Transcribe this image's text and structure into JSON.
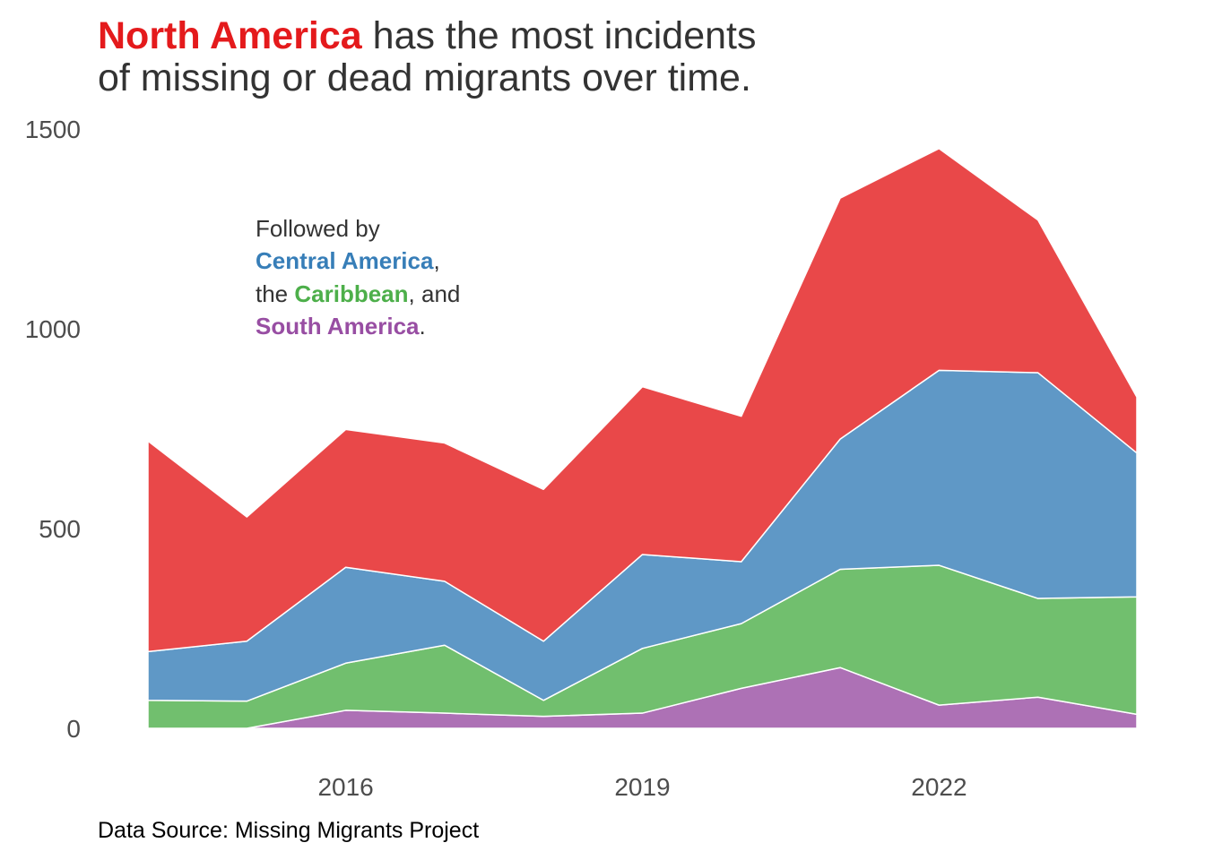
{
  "chart_data": {
    "type": "area",
    "stacked": true,
    "title": {
      "highlight": "North America",
      "line1_rest": " has the most incidents",
      "line2": "of missing or dead migrants over time."
    },
    "annotation": {
      "line1": "Followed by",
      "central": "Central America",
      "comma": ",",
      "the": "the ",
      "caribbean": "Caribbean",
      "and": ", and",
      "south": "South America",
      "period": "."
    },
    "caption": "Data Source: Missing Migrants Project",
    "xlabel": "",
    "ylabel": "",
    "x": [
      2014,
      2015,
      2016,
      2017,
      2018,
      2019,
      2020,
      2021,
      2022,
      2023,
      2024
    ],
    "xlim": [
      2014,
      2024
    ],
    "ylim": [
      0,
      1500
    ],
    "x_ticks": [
      2016,
      2019,
      2022
    ],
    "x_tick_labels": [
      "2016",
      "2019",
      "2022"
    ],
    "y_ticks": [
      0,
      500,
      1000,
      1500
    ],
    "y_tick_labels": [
      "0",
      "500",
      "1000",
      "1500"
    ],
    "grid": false,
    "legend": "none",
    "series": [
      {
        "name": "South America",
        "color": "#984EA3",
        "values": [
          0,
          0,
          45,
          38,
          30,
          38,
          100,
          152,
          58,
          78,
          35
        ]
      },
      {
        "name": "Caribbean",
        "color": "#4DAF4A",
        "values": [
          70,
          68,
          118,
          170,
          40,
          162,
          162,
          246,
          350,
          247,
          294
        ]
      },
      {
        "name": "Central America",
        "color": "#377EB8",
        "values": [
          122,
          150,
          240,
          160,
          148,
          235,
          155,
          326,
          488,
          565,
          360
        ]
      },
      {
        "name": "North America",
        "color": "#E41A1C",
        "values": [
          527,
          311,
          345,
          346,
          380,
          420,
          364,
          603,
          555,
          382,
          140
        ]
      }
    ]
  }
}
